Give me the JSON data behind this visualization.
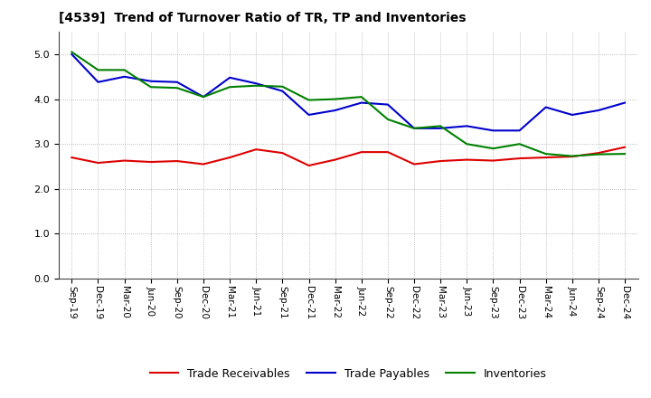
{
  "title": "[4539]  Trend of Turnover Ratio of TR, TP and Inventories",
  "x_labels": [
    "Sep-19",
    "Dec-19",
    "Mar-20",
    "Jun-20",
    "Sep-20",
    "Dec-20",
    "Mar-21",
    "Jun-21",
    "Sep-21",
    "Dec-21",
    "Mar-22",
    "Jun-22",
    "Sep-22",
    "Dec-22",
    "Mar-23",
    "Jun-23",
    "Sep-23",
    "Dec-23",
    "Mar-24",
    "Jun-24",
    "Sep-24",
    "Dec-24"
  ],
  "trade_receivables": [
    2.7,
    2.58,
    2.63,
    2.6,
    2.62,
    2.55,
    2.7,
    2.88,
    2.8,
    2.52,
    2.65,
    2.82,
    2.82,
    2.55,
    2.62,
    2.65,
    2.63,
    2.68,
    2.7,
    2.72,
    2.8,
    2.93
  ],
  "trade_payables": [
    5.0,
    4.38,
    4.5,
    4.4,
    4.38,
    4.05,
    4.48,
    4.35,
    4.18,
    3.65,
    3.75,
    3.92,
    3.88,
    3.35,
    3.35,
    3.4,
    3.3,
    3.3,
    3.82,
    3.65,
    3.75,
    3.92
  ],
  "inventories": [
    5.05,
    4.65,
    4.65,
    4.27,
    4.25,
    4.05,
    4.27,
    4.3,
    4.28,
    3.98,
    4.0,
    4.05,
    3.55,
    3.35,
    3.4,
    3.0,
    2.9,
    3.0,
    2.78,
    2.73,
    2.77,
    2.78
  ],
  "ylim": [
    0,
    5.5
  ],
  "yticks": [
    0.0,
    1.0,
    2.0,
    3.0,
    4.0,
    5.0
  ],
  "line_colors": {
    "trade_receivables": "#dd0000",
    "trade_payables": "#0000cc",
    "inventories": "#008000"
  },
  "legend_labels": [
    "Trade Receivables",
    "Trade Payables",
    "Inventories"
  ],
  "background_color": "#ffffff",
  "grid_color": "#aaaaaa"
}
